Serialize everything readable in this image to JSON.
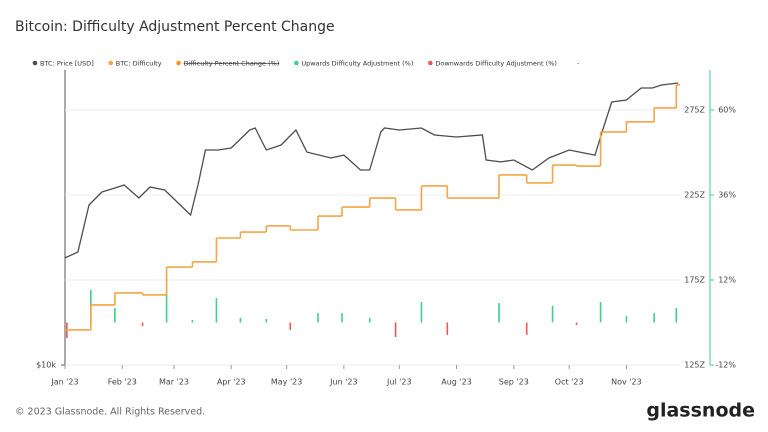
{
  "chart_data": {
    "type": "line",
    "title": "Bitcoin: Difficulty Adjustment Percent Change",
    "footer": "© 2023 Glassnode. All Rights Reserved.",
    "brand": "glassnode",
    "legend_more": "-",
    "xlim": [
      "2023-01-01",
      "2023-11-30"
    ],
    "xticks": [
      {
        "value": "2023-01-01",
        "label": "Jan '23"
      },
      {
        "value": "2023-02-01",
        "label": "Feb '23"
      },
      {
        "value": "2023-03-01",
        "label": "Mar '23"
      },
      {
        "value": "2023-04-01",
        "label": "Apr '23"
      },
      {
        "value": "2023-05-01",
        "label": "May '23"
      },
      {
        "value": "2023-06-01",
        "label": "Jun '23"
      },
      {
        "value": "2023-07-01",
        "label": "Jul '23"
      },
      {
        "value": "2023-08-01",
        "label": "Aug '23"
      },
      {
        "value": "2023-09-01",
        "label": "Sep '23"
      },
      {
        "value": "2023-10-01",
        "label": "Oct '23"
      },
      {
        "value": "2023-11-01",
        "label": "Nov '23"
      }
    ],
    "ylim": [
      10000,
      40000
    ],
    "ylog": true,
    "yticks": [
      {
        "value": 10000,
        "label": "$10k"
      }
    ],
    "y2lim": [
      125,
      298.5
    ],
    "y2ticks": [
      {
        "value": 125,
        "label": "125Z"
      },
      {
        "value": 175,
        "label": "175Z"
      },
      {
        "value": 225,
        "label": "225Z"
      },
      {
        "value": 275,
        "label": "275Z"
      }
    ],
    "y3lim": [
      -12,
      71.3
    ],
    "y3ticks": [
      {
        "value": -12,
        "label": "-12%"
      },
      {
        "value": 12,
        "label": "12%"
      },
      {
        "value": 36,
        "label": "36%"
      },
      {
        "value": 60,
        "label": "60%"
      }
    ],
    "grid": true,
    "series": [
      {
        "name": "BTC: Price [USD]",
        "color": "#4d4d4d",
        "type": "line",
        "axis": "y",
        "x": [
          "2023-01-01",
          "2023-01-08",
          "2023-01-14",
          "2023-01-21",
          "2023-01-28",
          "2023-02-02",
          "2023-02-10",
          "2023-02-16",
          "2023-02-24",
          "2023-03-10",
          "2023-03-14",
          "2023-03-18",
          "2023-03-25",
          "2023-04-01",
          "2023-04-11",
          "2023-04-14",
          "2023-04-20",
          "2023-04-28",
          "2023-05-06",
          "2023-05-12",
          "2023-05-25",
          "2023-06-01",
          "2023-06-10",
          "2023-06-15",
          "2023-06-21",
          "2023-06-23",
          "2023-07-01",
          "2023-07-13",
          "2023-07-20",
          "2023-08-01",
          "2023-08-15",
          "2023-08-17",
          "2023-08-25",
          "2023-09-01",
          "2023-09-11",
          "2023-09-20",
          "2023-10-01",
          "2023-10-15",
          "2023-10-20",
          "2023-10-24",
          "2023-11-01",
          "2023-11-09",
          "2023-11-15",
          "2023-11-20",
          "2023-11-29"
        ],
        "values": [
          16540,
          17010,
          21210,
          22550,
          22970,
          23300,
          21920,
          23080,
          22760,
          20240,
          23300,
          27470,
          27470,
          27730,
          30170,
          30450,
          27470,
          28120,
          30170,
          27200,
          26450,
          26820,
          25000,
          25000,
          29890,
          30450,
          30170,
          30450,
          29470,
          29200,
          29470,
          26210,
          25970,
          26210,
          25000,
          26450,
          27470,
          26820,
          30890,
          34420,
          34740,
          36750,
          36750,
          37270,
          37630
        ]
      },
      {
        "name": "BTC: Difficulty",
        "color": "#f5a545",
        "type": "step",
        "axis": "y2",
        "x": [
          "2023-01-01",
          "2023-01-15",
          "2023-01-28",
          "2023-02-12",
          "2023-02-25",
          "2023-03-11",
          "2023-03-24",
          "2023-04-06",
          "2023-04-20",
          "2023-05-03",
          "2023-05-18",
          "2023-05-31",
          "2023-06-15",
          "2023-06-29",
          "2023-07-13",
          "2023-07-27",
          "2023-08-24",
          "2023-09-08",
          "2023-09-22",
          "2023-10-05",
          "2023-10-18",
          "2023-11-01",
          "2023-11-16",
          "2023-11-28"
        ],
        "values": [
          145.6,
          160.3,
          167.4,
          166.2,
          182.6,
          185.6,
          199.7,
          203.2,
          206.8,
          204.4,
          212.6,
          217.9,
          223.2,
          216.2,
          230.3,
          223.2,
          236.8,
          232.1,
          242.6,
          242.0,
          262.1,
          268.0,
          276.2,
          289.7
        ]
      },
      {
        "name": "Difficulty Percent Change (%)",
        "color": "#f7931a",
        "type": "hidden"
      },
      {
        "name": "Upwards Difficulty Adjustment (%)",
        "color": "#3fcf8e",
        "type": "bar",
        "axis": "y3",
        "x": [
          "2023-01-15",
          "2023-01-28",
          "2023-02-25",
          "2023-03-11",
          "2023-03-24",
          "2023-04-06",
          "2023-04-20",
          "2023-05-18",
          "2023-05-31",
          "2023-06-15",
          "2023-07-13",
          "2023-08-24",
          "2023-09-22",
          "2023-10-18",
          "2023-11-01",
          "2023-11-16",
          "2023-11-28"
        ],
        "values": [
          9.2,
          4.1,
          8.6,
          0.7,
          6.9,
          1.3,
          1.0,
          2.7,
          2.7,
          1.3,
          5.8,
          5.5,
          4.7,
          5.8,
          1.8,
          2.7,
          4.1
        ]
      },
      {
        "name": "Downwards Difficulty Adjustment (%)",
        "color": "#f0555a",
        "type": "bar",
        "axis": "y3",
        "x": [
          "2023-01-02",
          "2023-02-12",
          "2023-05-03",
          "2023-06-29",
          "2023-07-27",
          "2023-09-08",
          "2023-10-05"
        ],
        "values": [
          -4.4,
          -1.0,
          -2.1,
          -4.1,
          -3.5,
          -3.5,
          -0.7
        ]
      }
    ]
  }
}
